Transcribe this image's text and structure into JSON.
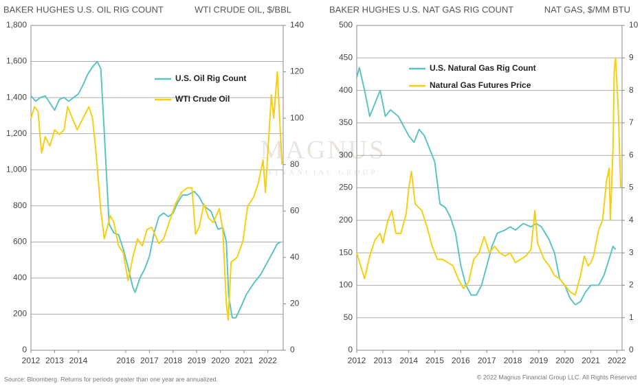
{
  "chart_data": [
    {
      "type": "line",
      "title": "BAKER HUGHES U.S. OIL RIG COUNT",
      "y2label": "WTI CRUDE OIL, $/BBL",
      "xlim": [
        2012,
        2022.65
      ],
      "xticks": [
        2012,
        2013,
        2014,
        2016,
        2017,
        2018,
        2019,
        2020,
        2021,
        2022
      ],
      "ylim": [
        0,
        1800
      ],
      "yticks": [
        0,
        200,
        400,
        600,
        800,
        {
          "value": 1000,
          "label": "1,000"
        },
        {
          "value": 1200,
          "label": "1,200"
        },
        {
          "value": 1400,
          "label": "1,400"
        },
        {
          "value": 1600,
          "label": "1,600"
        },
        {
          "value": 1800,
          "label": "1,800"
        }
      ],
      "y2lim": [
        0,
        140
      ],
      "y2ticks": [
        0,
        20,
        40,
        60,
        80,
        100,
        120,
        140
      ],
      "grid": true,
      "legend": "upper right",
      "series": [
        {
          "name": "U.S. Oil Rig Count",
          "color": "#5cc3c3",
          "x": [
            2012.0,
            2012.2,
            2012.4,
            2012.6,
            2012.8,
            2013.0,
            2013.2,
            2013.4,
            2013.6,
            2013.8,
            2014.0,
            2014.2,
            2014.4,
            2014.6,
            2014.8,
            2014.95,
            2015.1,
            2015.3,
            2015.5,
            2015.7,
            2015.9,
            2016.1,
            2016.3,
            2016.4,
            2016.6,
            2016.8,
            2017.0,
            2017.2,
            2017.4,
            2017.6,
            2017.8,
            2018.0,
            2018.2,
            2018.4,
            2018.6,
            2018.9,
            2019.1,
            2019.3,
            2019.6,
            2019.9,
            2020.1,
            2020.25,
            2020.35,
            2020.5,
            2020.65,
            2020.9,
            2021.1,
            2021.4,
            2021.7,
            2021.95,
            2022.2,
            2022.4,
            2022.55
          ],
          "values": [
            1410,
            1380,
            1400,
            1410,
            1370,
            1330,
            1390,
            1400,
            1380,
            1400,
            1420,
            1470,
            1530,
            1570,
            1600,
            1560,
            1200,
            700,
            650,
            640,
            560,
            460,
            350,
            320,
            400,
            450,
            520,
            650,
            740,
            760,
            740,
            760,
            820,
            860,
            860,
            880,
            850,
            800,
            770,
            670,
            680,
            600,
            300,
            180,
            180,
            250,
            310,
            370,
            420,
            480,
            540,
            590,
            600
          ]
        },
        {
          "name": "WTI Crude Oil",
          "color": "#f7cf10",
          "axis": "y2",
          "x": [
            2012.0,
            2012.15,
            2012.3,
            2012.45,
            2012.6,
            2012.8,
            2013.0,
            2013.2,
            2013.4,
            2013.55,
            2013.75,
            2013.95,
            2014.2,
            2014.45,
            2014.6,
            2014.75,
            2014.95,
            2015.1,
            2015.35,
            2015.5,
            2015.7,
            2015.9,
            2016.1,
            2016.3,
            2016.5,
            2016.7,
            2016.9,
            2017.1,
            2017.4,
            2017.6,
            2017.9,
            2018.1,
            2018.35,
            2018.6,
            2018.8,
            2018.95,
            2019.1,
            2019.3,
            2019.5,
            2019.7,
            2019.95,
            2020.1,
            2020.25,
            2020.33,
            2020.45,
            2020.7,
            2020.95,
            2021.15,
            2021.4,
            2021.6,
            2021.8,
            2021.9,
            2022.0,
            2022.15,
            2022.25,
            2022.4,
            2022.5,
            2022.6
          ],
          "values": [
            100,
            105,
            103,
            85,
            92,
            88,
            95,
            93,
            95,
            105,
            100,
            95,
            100,
            105,
            100,
            85,
            60,
            48,
            58,
            55,
            45,
            42,
            30,
            40,
            48,
            45,
            52,
            53,
            46,
            48,
            57,
            63,
            68,
            70,
            70,
            50,
            53,
            63,
            57,
            55,
            61,
            52,
            20,
            13,
            38,
            40,
            47,
            62,
            66,
            72,
            82,
            68,
            85,
            110,
            100,
            120,
            100,
            80
          ]
        }
      ]
    },
    {
      "type": "line",
      "title": "BAKER HUGHES U.S. NAT GAS RIG COUNT",
      "y2label": "NAT GAS, $/MM BTU",
      "xlim": [
        2012,
        2022.2
      ],
      "xticks": [
        2012,
        2013,
        2014,
        2015,
        2016,
        2017,
        2018,
        2019,
        2020,
        2021,
        2022
      ],
      "ylim": [
        0,
        500
      ],
      "yticks": [
        0,
        50,
        100,
        150,
        200,
        250,
        300,
        350,
        400,
        450,
        500
      ],
      "y2lim": [
        0,
        10
      ],
      "y2ticks": [
        0,
        1,
        2,
        3,
        4,
        5,
        6,
        7,
        8,
        9,
        10
      ],
      "grid": true,
      "legend": "upper left",
      "series": [
        {
          "name": "U.S. Natural Gas Rig Count",
          "color": "#5cc3c3",
          "x": [
            2012.0,
            2012.1,
            2012.3,
            2012.5,
            2012.7,
            2012.9,
            2013.1,
            2013.3,
            2013.6,
            2013.8,
            2014.0,
            2014.2,
            2014.4,
            2014.6,
            2014.8,
            2015.0,
            2015.2,
            2015.4,
            2015.6,
            2015.8,
            2016.0,
            2016.2,
            2016.4,
            2016.6,
            2016.8,
            2017.0,
            2017.2,
            2017.4,
            2017.7,
            2017.9,
            2018.1,
            2018.4,
            2018.7,
            2018.9,
            2019.1,
            2019.4,
            2019.6,
            2019.8,
            2020.0,
            2020.2,
            2020.4,
            2020.6,
            2020.8,
            2021.0,
            2021.3,
            2021.5,
            2021.7,
            2021.85,
            2021.95
          ],
          "values": [
            420,
            435,
            400,
            360,
            380,
            400,
            360,
            370,
            360,
            345,
            330,
            320,
            340,
            330,
            310,
            290,
            225,
            220,
            205,
            180,
            130,
            100,
            85,
            85,
            100,
            130,
            160,
            180,
            185,
            190,
            185,
            195,
            190,
            195,
            190,
            170,
            150,
            110,
            100,
            80,
            70,
            75,
            90,
            100,
            100,
            115,
            140,
            160,
            155
          ]
        },
        {
          "name": "Natural Gas Futures Price",
          "color": "#f7cf10",
          "axis": "y2",
          "x": [
            2012.0,
            2012.15,
            2012.3,
            2012.5,
            2012.7,
            2012.9,
            2013.0,
            2013.2,
            2013.35,
            2013.5,
            2013.7,
            2013.9,
            2014.0,
            2014.1,
            2014.25,
            2014.5,
            2014.7,
            2014.9,
            2015.1,
            2015.3,
            2015.5,
            2015.7,
            2015.9,
            2016.1,
            2016.3,
            2016.5,
            2016.7,
            2016.9,
            2017.1,
            2017.3,
            2017.5,
            2017.7,
            2017.9,
            2018.1,
            2018.3,
            2018.5,
            2018.7,
            2018.85,
            2018.95,
            2019.2,
            2019.4,
            2019.6,
            2019.8,
            2020.0,
            2020.2,
            2020.4,
            2020.6,
            2020.75,
            2020.9,
            2021.0,
            2021.1,
            2021.3,
            2021.45,
            2021.6,
            2021.7,
            2021.75,
            2021.85,
            2021.9,
            2021.95,
            2022.05,
            2022.15
          ],
          "values": [
            3.0,
            2.6,
            2.2,
            2.9,
            3.4,
            3.6,
            3.3,
            4.0,
            4.3,
            3.6,
            3.6,
            4.2,
            5.0,
            5.5,
            4.5,
            4.3,
            3.8,
            3.2,
            2.8,
            2.8,
            2.7,
            2.6,
            2.2,
            1.9,
            2.1,
            2.8,
            3.0,
            3.5,
            3.0,
            3.2,
            3.0,
            2.9,
            3.0,
            2.7,
            2.8,
            2.9,
            3.1,
            4.3,
            3.3,
            2.8,
            2.6,
            2.3,
            2.2,
            2.0,
            1.8,
            1.7,
            2.3,
            2.9,
            2.6,
            2.7,
            2.9,
            3.7,
            4.0,
            5.2,
            5.6,
            4.0,
            6.2,
            8.6,
            9.0,
            7.5,
            5.0
          ]
        }
      ]
    }
  ],
  "watermark": {
    "name": "MAGNUS",
    "tagline": "FINANCIAL GROUP"
  },
  "footer": {
    "source": "Source: Bloomberg. Returns for periods greater than one year are annualized.",
    "copyright": "© 2022 Magnus Financial Group LLC. All Rights Reserved"
  }
}
